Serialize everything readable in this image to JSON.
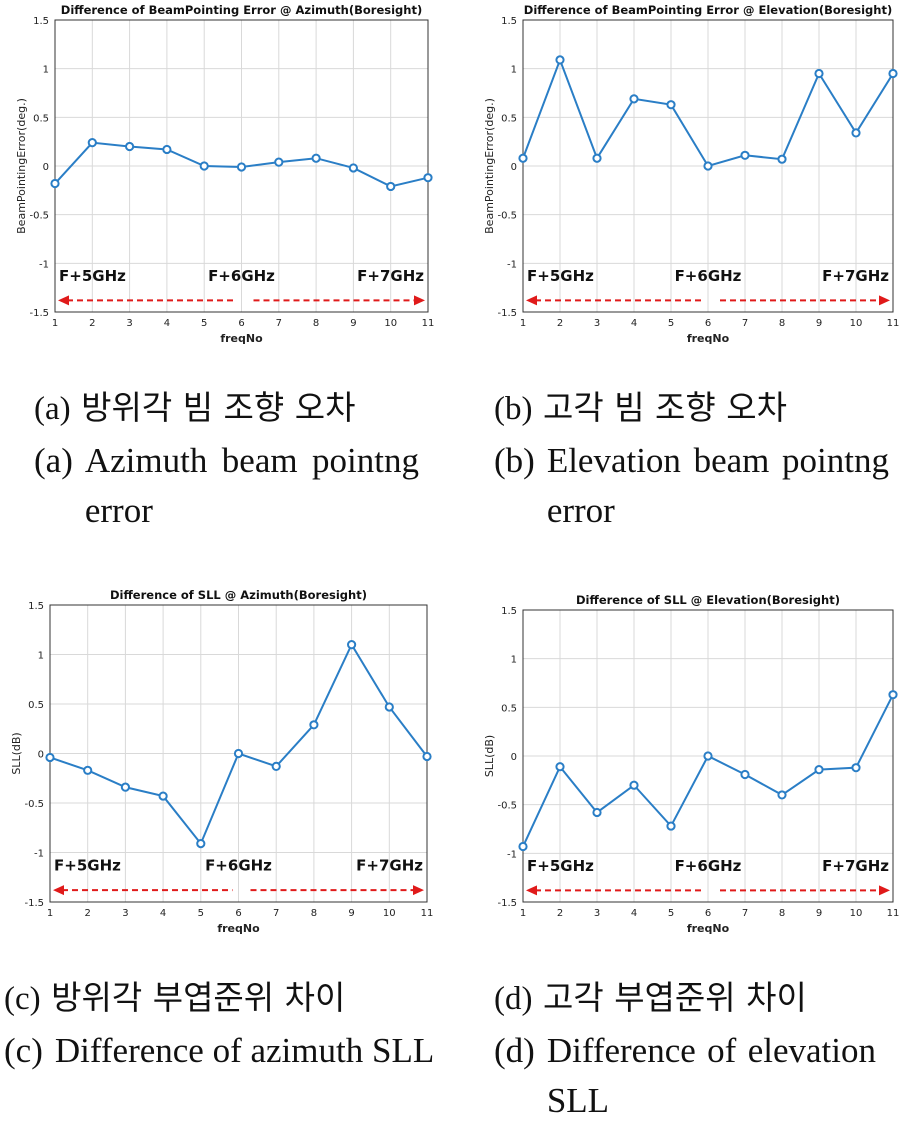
{
  "chart_data": [
    {
      "type": "line",
      "title": "Difference of BeamPointing Error @ Azimuth(Boresight)",
      "xlabel": "freqNo",
      "ylabel": "BeamPointingError(deg.)",
      "x": [
        1,
        2,
        3,
        4,
        5,
        6,
        7,
        8,
        9,
        10,
        11
      ],
      "series": [
        {
          "values": [
            -0.18,
            0.24,
            0.2,
            0.17,
            0.0,
            -0.01,
            0.04,
            0.08,
            -0.02,
            -0.21,
            -0.12
          ]
        }
      ],
      "xlim": [
        1,
        11
      ],
      "ylim": [
        -1.5,
        1.5
      ],
      "xticks": [
        "1",
        "2",
        "3",
        "4",
        "5",
        "6",
        "7",
        "8",
        "9",
        "10",
        "11"
      ],
      "yticks": [
        "1.5",
        "1",
        "0.5",
        "0",
        "-0.5",
        "-1",
        "-1.5"
      ],
      "annotations": [
        "F+5GHz",
        "F+6GHz",
        "F+7GHz"
      ],
      "grid": true,
      "line_color": "#2a7ec6",
      "arrow_color": "#e01a1a"
    },
    {
      "type": "line",
      "title": "Difference of BeamPointing Error @ Elevation(Boresight)",
      "xlabel": "freqNo",
      "ylabel": "BeamPointingError(deg.)",
      "x": [
        1,
        2,
        3,
        4,
        5,
        6,
        7,
        8,
        9,
        10,
        11
      ],
      "series": [
        {
          "values": [
            0.08,
            1.09,
            0.08,
            0.69,
            0.63,
            0.0,
            0.11,
            0.07,
            0.95,
            0.34,
            0.95
          ]
        }
      ],
      "xlim": [
        1,
        11
      ],
      "ylim": [
        -1.5,
        1.5
      ],
      "xticks": [
        "1",
        "2",
        "3",
        "4",
        "5",
        "6",
        "7",
        "8",
        "9",
        "10",
        "11"
      ],
      "yticks": [
        "1.5",
        "1",
        "0.5",
        "0",
        "-0.5",
        "-1",
        "-1.5"
      ],
      "annotations": [
        "F+5GHz",
        "F+6GHz",
        "F+7GHz"
      ],
      "grid": true,
      "line_color": "#2a7ec6",
      "arrow_color": "#e01a1a"
    },
    {
      "type": "line",
      "title": "Difference of SLL @ Azimuth(Boresight)",
      "xlabel": "freqNo",
      "ylabel": "SLL(dB)",
      "x": [
        1,
        2,
        3,
        4,
        5,
        6,
        7,
        8,
        9,
        10,
        11
      ],
      "series": [
        {
          "values": [
            -0.04,
            -0.17,
            -0.34,
            -0.43,
            -0.91,
            0.0,
            -0.13,
            0.29,
            1.1,
            0.47,
            -0.03
          ]
        }
      ],
      "xlim": [
        1,
        11
      ],
      "ylim": [
        -1.5,
        1.5
      ],
      "xticks": [
        "1",
        "2",
        "3",
        "4",
        "5",
        "6",
        "7",
        "8",
        "9",
        "10",
        "11"
      ],
      "yticks": [
        "1.5",
        "1",
        "0.5",
        "0",
        "-0.5",
        "-1",
        "-1.5"
      ],
      "annotations": [
        "F+5GHz",
        "F+6GHz",
        "F+7GHz"
      ],
      "grid": true,
      "line_color": "#2a7ec6",
      "arrow_color": "#e01a1a"
    },
    {
      "type": "line",
      "title": "Difference of SLL @ Elevation(Boresight)",
      "xlabel": "freqNo",
      "ylabel": "SLL(dB)",
      "x": [
        1,
        2,
        3,
        4,
        5,
        6,
        7,
        8,
        9,
        10,
        11
      ],
      "series": [
        {
          "values": [
            -0.93,
            -0.11,
            -0.58,
            -0.3,
            -0.72,
            0.0,
            -0.19,
            -0.4,
            -0.14,
            -0.12,
            0.63
          ]
        }
      ],
      "xlim": [
        1,
        11
      ],
      "ylim": [
        -1.5,
        1.5
      ],
      "xticks": [
        "1",
        "2",
        "3",
        "4",
        "5",
        "6",
        "7",
        "8",
        "9",
        "10",
        "11"
      ],
      "yticks": [
        "1.5",
        "1",
        "0.5",
        "0",
        "-0.5",
        "-1",
        "-1.5"
      ],
      "annotations": [
        "F+5GHz",
        "F+6GHz",
        "F+7GHz"
      ],
      "grid": true,
      "line_color": "#2a7ec6",
      "arrow_color": "#e01a1a"
    }
  ],
  "captions": [
    {
      "tag": "(a)",
      "korean": "방위각 빔 조향 오차",
      "english": "Azimuth beam pointng error"
    },
    {
      "tag": "(b)",
      "korean": "고각 빔 조향 오차",
      "english": "Elevation beam pointng error"
    },
    {
      "tag": "(c)",
      "korean": "방위각 부엽준위 차이",
      "english": "Difference of azimuth SLL"
    },
    {
      "tag": "(d)",
      "korean": "고각 부엽준위 차이",
      "english": "Difference of elevation SLL"
    }
  ]
}
